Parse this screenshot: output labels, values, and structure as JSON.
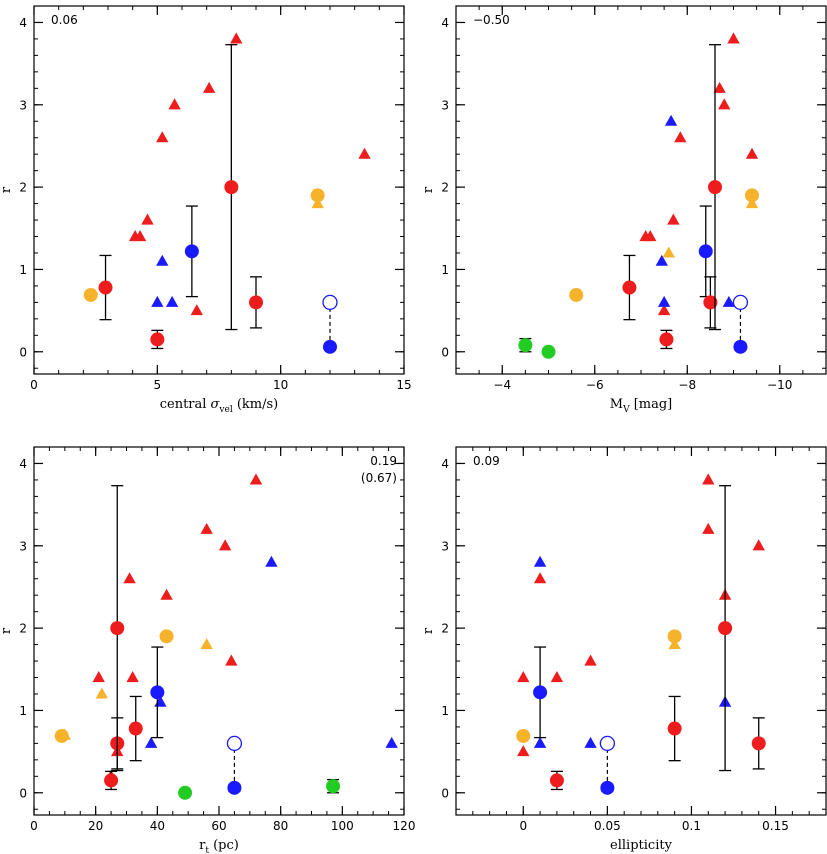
{
  "colors": {
    "red": "#ee1c1c",
    "blue": "#1a1aff",
    "orange": "#f7b22b",
    "green": "#22cc22",
    "black": "#000000"
  },
  "chart_data": [
    {
      "type": "scatter",
      "id": "panel-sigma",
      "xlabel": "central σ_vel (km/s)",
      "xlabel_main": "central ",
      "xlabel_sym": "σ",
      "xlabel_sub": "vel",
      "xlabel_tail": " (km/s)",
      "ylabel": "r",
      "xlim": [
        0,
        15
      ],
      "ylim": [
        -0.27,
        4.2
      ],
      "xticks": [
        0,
        5,
        10,
        15
      ],
      "yticks": [
        0,
        1,
        2,
        3,
        4
      ],
      "xminor": 1,
      "yminor": 0.2,
      "correlation": [
        "0.06"
      ],
      "correlation_position": "top-left",
      "points": [
        {
          "shape": "triangle",
          "color": "red",
          "x": 4.1,
          "y": 1.4
        },
        {
          "shape": "triangle",
          "color": "red",
          "x": 4.3,
          "y": 1.4
        },
        {
          "shape": "triangle",
          "color": "red",
          "x": 4.6,
          "y": 1.6
        },
        {
          "shape": "triangle",
          "color": "red",
          "x": 5.2,
          "y": 2.6
        },
        {
          "shape": "triangle",
          "color": "red",
          "x": 5.7,
          "y": 3.0
        },
        {
          "shape": "triangle",
          "color": "red",
          "x": 6.6,
          "y": 0.5
        },
        {
          "shape": "triangle",
          "color": "red",
          "x": 7.1,
          "y": 3.2
        },
        {
          "shape": "triangle",
          "color": "red",
          "x": 8.2,
          "y": 3.8
        },
        {
          "shape": "triangle",
          "color": "red",
          "x": 13.4,
          "y": 2.4
        },
        {
          "shape": "triangle",
          "color": "blue",
          "x": 5.0,
          "y": 0.6
        },
        {
          "shape": "triangle",
          "color": "blue",
          "x": 5.2,
          "y": 1.1
        },
        {
          "shape": "triangle",
          "color": "blue",
          "x": 5.6,
          "y": 0.6
        },
        {
          "shape": "triangle",
          "color": "orange",
          "x": 11.5,
          "y": 1.8
        },
        {
          "shape": "circle",
          "color": "orange",
          "x": 2.3,
          "y": 0.69
        },
        {
          "shape": "circle",
          "color": "red",
          "x": 2.9,
          "y": 0.78,
          "ylo": 0.39,
          "yhi": 1.17
        },
        {
          "shape": "circle",
          "color": "red",
          "x": 5.0,
          "y": 0.15,
          "ylo": 0.04,
          "yhi": 0.26
        },
        {
          "shape": "circle",
          "color": "blue",
          "x": 6.4,
          "y": 1.22,
          "ylo": 0.67,
          "yhi": 1.77
        },
        {
          "shape": "circle",
          "color": "red",
          "x": 8.0,
          "y": 2.0,
          "ylo": 0.27,
          "yhi": 3.73
        },
        {
          "shape": "circle",
          "color": "red",
          "x": 9.0,
          "y": 0.6,
          "ylo": 0.29,
          "yhi": 0.91
        },
        {
          "shape": "circle",
          "color": "orange",
          "x": 11.5,
          "y": 1.9
        },
        {
          "shape": "circle",
          "color": "blue",
          "x": 12.0,
          "y": 0.06,
          "ylo": 0.02,
          "yhi": 0.1
        },
        {
          "shape": "open-circle",
          "color": "blue",
          "x": 12.0,
          "y": 0.6
        }
      ],
      "dashed_links": [
        {
          "x": 12.0,
          "y0": 0.06,
          "y1": 0.6
        }
      ]
    },
    {
      "type": "scatter",
      "id": "panel-mv",
      "xlabel": "M_V [mag]",
      "xlabel_main": "M",
      "xlabel_sub": "V",
      "xlabel_tail": " [mag]",
      "ylabel": "r",
      "xlim": [
        -3,
        -11
      ],
      "ylim": [
        -0.27,
        4.2
      ],
      "xticks": [
        -4,
        -6,
        -8,
        -10
      ],
      "xticklabels": [
        "−4",
        "−6",
        "−8",
        "−10"
      ],
      "yticks": [
        0,
        1,
        2,
        3,
        4
      ],
      "xminor": 0.5,
      "yminor": 0.2,
      "correlation": [
        "−0.50"
      ],
      "correlation_position": "top-left",
      "points": [
        {
          "shape": "triangle",
          "color": "red",
          "x": -7.1,
          "y": 1.4
        },
        {
          "shape": "triangle",
          "color": "red",
          "x": -7.2,
          "y": 1.4
        },
        {
          "shape": "triangle",
          "color": "red",
          "x": -7.5,
          "y": 0.5
        },
        {
          "shape": "triangle",
          "color": "red",
          "x": -7.7,
          "y": 1.6
        },
        {
          "shape": "triangle",
          "color": "red",
          "x": -7.85,
          "y": 2.6
        },
        {
          "shape": "triangle",
          "color": "red",
          "x": -8.7,
          "y": 3.2
        },
        {
          "shape": "triangle",
          "color": "red",
          "x": -8.8,
          "y": 3.0
        },
        {
          "shape": "triangle",
          "color": "red",
          "x": -9.0,
          "y": 3.8
        },
        {
          "shape": "triangle",
          "color": "red",
          "x": -9.4,
          "y": 2.4
        },
        {
          "shape": "triangle",
          "color": "blue",
          "x": -7.45,
          "y": 1.1
        },
        {
          "shape": "triangle",
          "color": "blue",
          "x": -7.5,
          "y": 0.6
        },
        {
          "shape": "triangle",
          "color": "blue",
          "x": -7.65,
          "y": 2.8
        },
        {
          "shape": "triangle",
          "color": "blue",
          "x": -8.9,
          "y": 0.6
        },
        {
          "shape": "triangle",
          "color": "orange",
          "x": -7.6,
          "y": 1.2
        },
        {
          "shape": "triangle",
          "color": "orange",
          "x": -9.4,
          "y": 1.8
        },
        {
          "shape": "circle",
          "color": "green",
          "x": -4.5,
          "y": 0.08,
          "ylo": 0.0,
          "yhi": 0.16
        },
        {
          "shape": "circle",
          "color": "green",
          "x": -5.0,
          "y": 0.0
        },
        {
          "shape": "circle",
          "color": "orange",
          "x": -5.6,
          "y": 0.69
        },
        {
          "shape": "circle",
          "color": "red",
          "x": -6.75,
          "y": 0.78,
          "ylo": 0.39,
          "yhi": 1.17
        },
        {
          "shape": "circle",
          "color": "red",
          "x": -7.55,
          "y": 0.15,
          "ylo": 0.04,
          "yhi": 0.26
        },
        {
          "shape": "circle",
          "color": "blue",
          "x": -8.4,
          "y": 1.22,
          "ylo": 0.67,
          "yhi": 1.77
        },
        {
          "shape": "circle",
          "color": "red",
          "x": -8.5,
          "y": 0.6,
          "ylo": 0.29,
          "yhi": 0.91
        },
        {
          "shape": "circle",
          "color": "red",
          "x": -8.6,
          "y": 2.0,
          "ylo": 0.27,
          "yhi": 3.73
        },
        {
          "shape": "circle",
          "color": "orange",
          "x": -9.4,
          "y": 1.9
        },
        {
          "shape": "circle",
          "color": "blue",
          "x": -9.15,
          "y": 0.06,
          "ylo": 0.02,
          "yhi": 0.1
        },
        {
          "shape": "open-circle",
          "color": "blue",
          "x": -9.15,
          "y": 0.6
        }
      ],
      "dashed_links": [
        {
          "x": -9.15,
          "y0": 0.06,
          "y1": 0.6
        }
      ]
    },
    {
      "type": "scatter",
      "id": "panel-rt",
      "xlabel": "r_t (pc)",
      "xlabel_main": "r",
      "xlabel_sub": "t",
      "xlabel_tail": " (pc)",
      "ylabel": "r",
      "xlim": [
        0,
        120
      ],
      "ylim": [
        -0.27,
        4.2
      ],
      "xticks": [
        0,
        20,
        40,
        60,
        80,
        100,
        120
      ],
      "yticks": [
        0,
        1,
        2,
        3,
        4
      ],
      "xminor": 5,
      "yminor": 0.2,
      "correlation": [
        "0.19",
        "(0.67)"
      ],
      "correlation_position": "top-right",
      "points": [
        {
          "shape": "triangle",
          "color": "orange",
          "x": 10,
          "y": 0.7
        },
        {
          "shape": "triangle",
          "color": "red",
          "x": 21,
          "y": 1.4
        },
        {
          "shape": "triangle",
          "color": "orange",
          "x": 22,
          "y": 1.2
        },
        {
          "shape": "triangle",
          "color": "red",
          "x": 25,
          "y": 0.2
        },
        {
          "shape": "triangle",
          "color": "red",
          "x": 27,
          "y": 0.5
        },
        {
          "shape": "triangle",
          "color": "red",
          "x": 31,
          "y": 2.6
        },
        {
          "shape": "triangle",
          "color": "red",
          "x": 32,
          "y": 1.4
        },
        {
          "shape": "triangle",
          "color": "red",
          "x": 43,
          "y": 2.4
        },
        {
          "shape": "triangle",
          "color": "red",
          "x": 56,
          "y": 3.2
        },
        {
          "shape": "triangle",
          "color": "red",
          "x": 62,
          "y": 3.0
        },
        {
          "shape": "triangle",
          "color": "red",
          "x": 64,
          "y": 1.6
        },
        {
          "shape": "triangle",
          "color": "red",
          "x": 72,
          "y": 3.8
        },
        {
          "shape": "triangle",
          "color": "orange",
          "x": 56,
          "y": 1.8
        },
        {
          "shape": "triangle",
          "color": "blue",
          "x": 38,
          "y": 0.6
        },
        {
          "shape": "triangle",
          "color": "blue",
          "x": 41,
          "y": 1.1
        },
        {
          "shape": "triangle",
          "color": "blue",
          "x": 77,
          "y": 2.8
        },
        {
          "shape": "triangle",
          "color": "blue",
          "x": 116,
          "y": 0.6
        },
        {
          "shape": "circle",
          "color": "orange",
          "x": 9,
          "y": 0.69
        },
        {
          "shape": "circle",
          "color": "red",
          "x": 25,
          "y": 0.15,
          "ylo": 0.04,
          "yhi": 0.26
        },
        {
          "shape": "circle",
          "color": "red",
          "x": 27,
          "y": 0.6,
          "ylo": 0.29,
          "yhi": 0.91
        },
        {
          "shape": "circle",
          "color": "red",
          "x": 27,
          "y": 2.0,
          "ylo": 0.27,
          "yhi": 3.73
        },
        {
          "shape": "circle",
          "color": "red",
          "x": 33,
          "y": 0.78,
          "ylo": 0.39,
          "yhi": 1.17
        },
        {
          "shape": "circle",
          "color": "blue",
          "x": 40,
          "y": 1.22,
          "ylo": 0.67,
          "yhi": 1.77
        },
        {
          "shape": "circle",
          "color": "orange",
          "x": 43,
          "y": 1.9
        },
        {
          "shape": "circle",
          "color": "green",
          "x": 49,
          "y": 0.0
        },
        {
          "shape": "circle",
          "color": "blue",
          "x": 65,
          "y": 0.06,
          "ylo": 0.02,
          "yhi": 0.1
        },
        {
          "shape": "open-circle",
          "color": "blue",
          "x": 65,
          "y": 0.6
        },
        {
          "shape": "circle",
          "color": "green",
          "x": 97,
          "y": 0.08,
          "ylo": 0.0,
          "yhi": 0.16
        }
      ],
      "dashed_links": [
        {
          "x": 65,
          "y0": 0.06,
          "y1": 0.6
        }
      ]
    },
    {
      "type": "scatter",
      "id": "panel-ell",
      "xlabel": "ellipticity",
      "xlabel_main": "ellipticity",
      "ylabel": "r",
      "xlim": [
        -0.04,
        0.18
      ],
      "ylim": [
        -0.27,
        4.2
      ],
      "xticks": [
        0,
        0.05,
        0.1,
        0.15
      ],
      "xticklabels": [
        "0",
        "0.05",
        "0.1",
        "0.15"
      ],
      "yticks": [
        0,
        1,
        2,
        3,
        4
      ],
      "xminor": 0.01,
      "yminor": 0.2,
      "correlation": [
        "0.09"
      ],
      "correlation_position": "top-left",
      "points": [
        {
          "shape": "triangle",
          "color": "red",
          "x": 0.0,
          "y": 1.4
        },
        {
          "shape": "triangle",
          "color": "red",
          "x": 0.0,
          "y": 0.5
        },
        {
          "shape": "triangle",
          "color": "red",
          "x": 0.01,
          "y": 2.6
        },
        {
          "shape": "triangle",
          "color": "red",
          "x": 0.02,
          "y": 1.4
        },
        {
          "shape": "triangle",
          "color": "red",
          "x": 0.04,
          "y": 1.6
        },
        {
          "shape": "triangle",
          "color": "red",
          "x": 0.11,
          "y": 3.8
        },
        {
          "shape": "triangle",
          "color": "red",
          "x": 0.11,
          "y": 3.2
        },
        {
          "shape": "triangle",
          "color": "red",
          "x": 0.12,
          "y": 2.4
        },
        {
          "shape": "triangle",
          "color": "red",
          "x": 0.14,
          "y": 3.0
        },
        {
          "shape": "triangle",
          "color": "blue",
          "x": 0.01,
          "y": 2.8
        },
        {
          "shape": "triangle",
          "color": "blue",
          "x": 0.01,
          "y": 0.6
        },
        {
          "shape": "triangle",
          "color": "blue",
          "x": 0.04,
          "y": 0.6
        },
        {
          "shape": "triangle",
          "color": "blue",
          "x": 0.12,
          "y": 1.1
        },
        {
          "shape": "triangle",
          "color": "orange",
          "x": 0.09,
          "y": 1.8
        },
        {
          "shape": "circle",
          "color": "orange",
          "x": 0.0,
          "y": 0.69
        },
        {
          "shape": "circle",
          "color": "blue",
          "x": 0.01,
          "y": 1.22,
          "ylo": 0.67,
          "yhi": 1.77
        },
        {
          "shape": "circle",
          "color": "red",
          "x": 0.02,
          "y": 0.15,
          "ylo": 0.04,
          "yhi": 0.26
        },
        {
          "shape": "circle",
          "color": "blue",
          "x": 0.05,
          "y": 0.06,
          "ylo": 0.02,
          "yhi": 0.1
        },
        {
          "shape": "open-circle",
          "color": "blue",
          "x": 0.05,
          "y": 0.6
        },
        {
          "shape": "circle",
          "color": "red",
          "x": 0.09,
          "y": 0.78,
          "ylo": 0.39,
          "yhi": 1.17
        },
        {
          "shape": "circle",
          "color": "orange",
          "x": 0.09,
          "y": 1.9
        },
        {
          "shape": "circle",
          "color": "red",
          "x": 0.12,
          "y": 2.0,
          "ylo": 0.27,
          "yhi": 3.73
        },
        {
          "shape": "circle",
          "color": "red",
          "x": 0.14,
          "y": 0.6,
          "ylo": 0.29,
          "yhi": 0.91
        }
      ],
      "dashed_links": [
        {
          "x": 0.05,
          "y0": 0.06,
          "y1": 0.6
        }
      ]
    }
  ]
}
